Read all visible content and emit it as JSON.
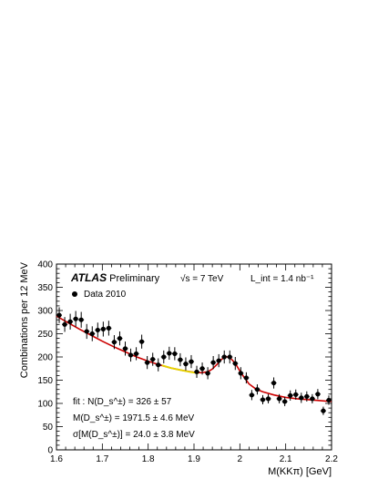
{
  "chart_data": {
    "type": "scatter",
    "xlabel": "M(KKπ) [GeV]",
    "ylabel": "Combinations per 12 MeV",
    "xlim": [
      1.6,
      2.2
    ],
    "ylim": [
      0,
      400
    ],
    "x_ticks": [
      "1.6",
      "1.7",
      "1.8",
      "1.9",
      "2",
      "2.1",
      "2.2"
    ],
    "y_ticks": [
      "0",
      "50",
      "100",
      "150",
      "200",
      "250",
      "300",
      "350",
      "400"
    ],
    "grid": false,
    "annotations": {
      "experiment": "ATLAS",
      "status": "Preliminary",
      "energy": "√s = 7 TeV",
      "luminosity": "L_int = 1.4 nb⁻¹",
      "fit_yield": "fit  : N(D_s^±) = 326 ± 57",
      "fit_mass": "M(D_s^±) = 1971.5 ± 4.6 MeV",
      "fit_width": "σ[M(D_s^±)] = 24.0 ± 3.8 MeV"
    },
    "series": [
      {
        "name": "Data 2010",
        "x": [
          1.606,
          1.618,
          1.63,
          1.642,
          1.654,
          1.666,
          1.678,
          1.69,
          1.702,
          1.714,
          1.726,
          1.738,
          1.75,
          1.762,
          1.774,
          1.786,
          1.798,
          1.81,
          1.822,
          1.834,
          1.846,
          1.858,
          1.87,
          1.882,
          1.894,
          1.906,
          1.918,
          1.93,
          1.942,
          1.954,
          1.966,
          1.978,
          1.99,
          2.002,
          2.014,
          2.026,
          2.038,
          2.05,
          2.062,
          2.074,
          2.086,
          2.098,
          2.11,
          2.122,
          2.134,
          2.146,
          2.158,
          2.17,
          2.182,
          2.194
        ],
        "y": [
          290,
          270,
          276,
          282,
          280,
          255,
          250,
          258,
          260,
          262,
          232,
          240,
          218,
          204,
          207,
          233,
          188,
          195,
          183,
          200,
          208,
          207,
          194,
          185,
          190,
          168,
          175,
          165,
          188,
          192,
          200,
          200,
          186,
          165,
          155,
          118,
          130,
          108,
          110,
          144,
          110,
          104,
          117,
          119,
          112,
          115,
          110,
          120,
          84,
          107
        ],
        "yerr": [
          17,
          16,
          17,
          17,
          17,
          16,
          16,
          16,
          16,
          16,
          15,
          15,
          15,
          14,
          14,
          15,
          14,
          14,
          14,
          14,
          14,
          14,
          14,
          14,
          14,
          13,
          13,
          13,
          14,
          14,
          14,
          14,
          14,
          13,
          12,
          11,
          11,
          10,
          10,
          12,
          10,
          10,
          11,
          11,
          11,
          11,
          10,
          11,
          9,
          10
        ]
      },
      {
        "name": "fit",
        "style": "line",
        "color": "#cc0000",
        "x": [
          1.6,
          1.625,
          1.65,
          1.675,
          1.7,
          1.725,
          1.75,
          1.775,
          1.8,
          1.825,
          1.85,
          1.875,
          1.9,
          1.915,
          1.93,
          1.94,
          1.95,
          1.96,
          1.97,
          1.98,
          1.99,
          2.0,
          2.01,
          2.02,
          2.035,
          2.05,
          2.075,
          2.1,
          2.125,
          2.15,
          2.175,
          2.2
        ],
        "y": [
          288,
          274,
          260,
          247,
          234,
          222,
          211,
          200,
          191,
          183,
          176,
          171,
          167,
          166,
          168,
          174,
          184,
          195,
          201,
          197,
          186,
          170,
          155,
          142,
          131,
          125,
          118,
          113,
          110,
          108,
          106,
          104
        ]
      },
      {
        "name": "background",
        "style": "line",
        "color": "#e6d200",
        "x": [
          1.83,
          1.85,
          1.87,
          1.89,
          1.91
        ],
        "y": [
          182,
          176,
          172,
          168,
          165
        ]
      }
    ],
    "legend": {
      "position": "top-left",
      "entries": [
        "Data 2010"
      ]
    }
  }
}
